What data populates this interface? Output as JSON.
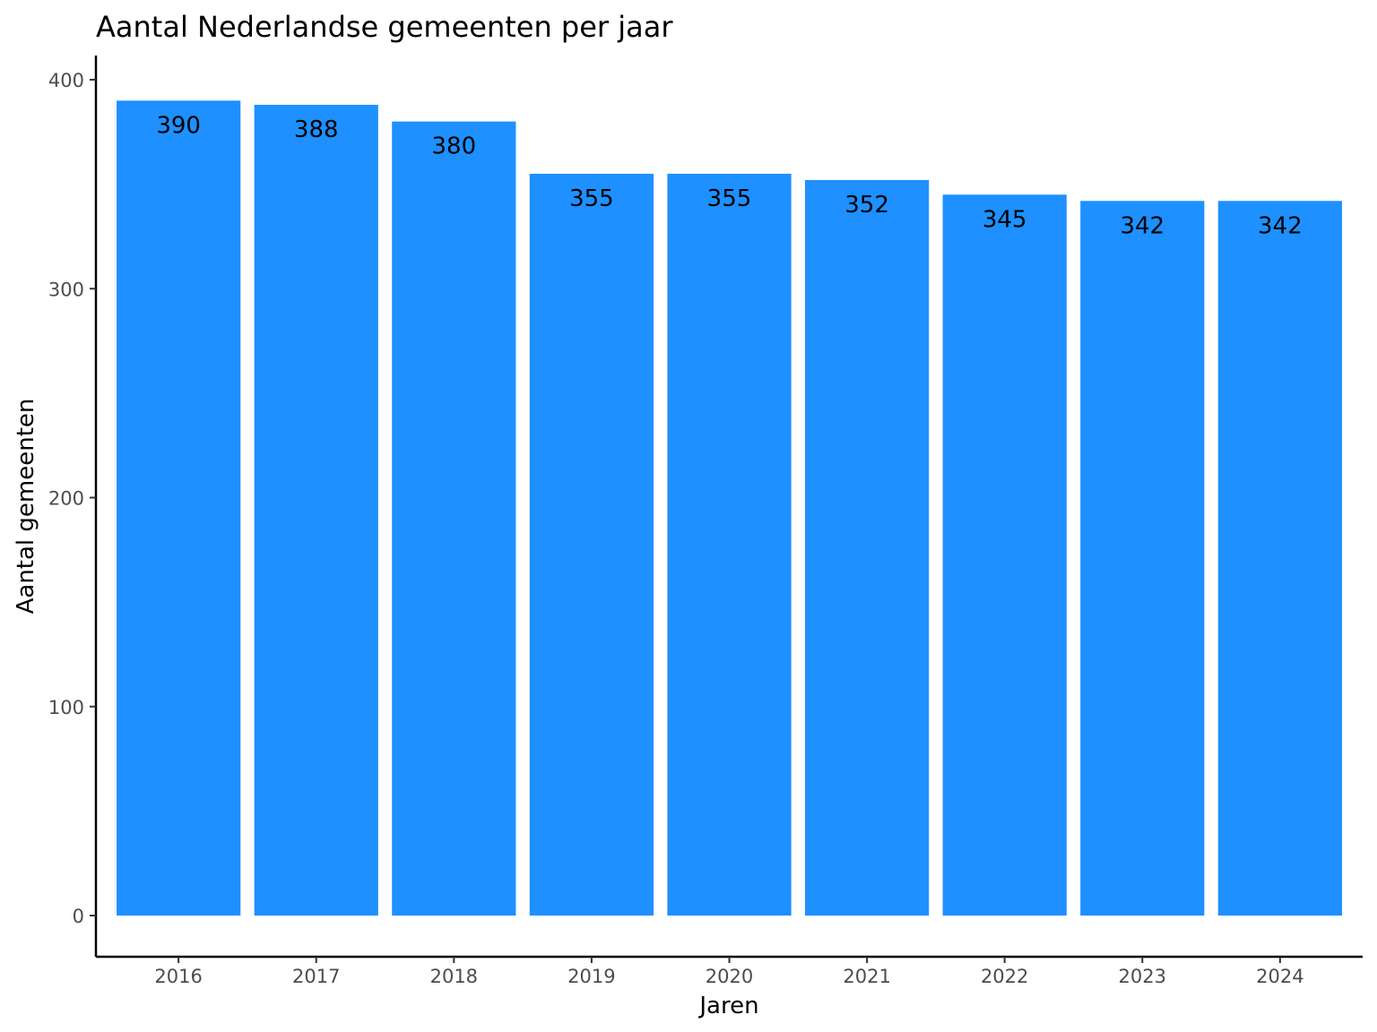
{
  "chart_data": {
    "type": "bar",
    "title": "Aantal Nederlandse gemeenten per jaar",
    "xlabel": "Jaren",
    "ylabel": "Aantal gemeenten",
    "categories": [
      "2016",
      "2017",
      "2018",
      "2019",
      "2020",
      "2021",
      "2022",
      "2023",
      "2024"
    ],
    "values": [
      390,
      388,
      380,
      355,
      355,
      352,
      345,
      342,
      342
    ],
    "data_labels": [
      "390",
      "388",
      "380",
      "355",
      "355",
      "352",
      "345",
      "342",
      "342"
    ],
    "y_ticks": [
      0,
      100,
      200,
      300,
      400
    ],
    "y_tick_labels": [
      "0",
      "100",
      "200",
      "300",
      "400"
    ],
    "ylim": [
      -19.5,
      410
    ],
    "bar_color": "#1E90FF",
    "grid": false,
    "legend": "none"
  }
}
